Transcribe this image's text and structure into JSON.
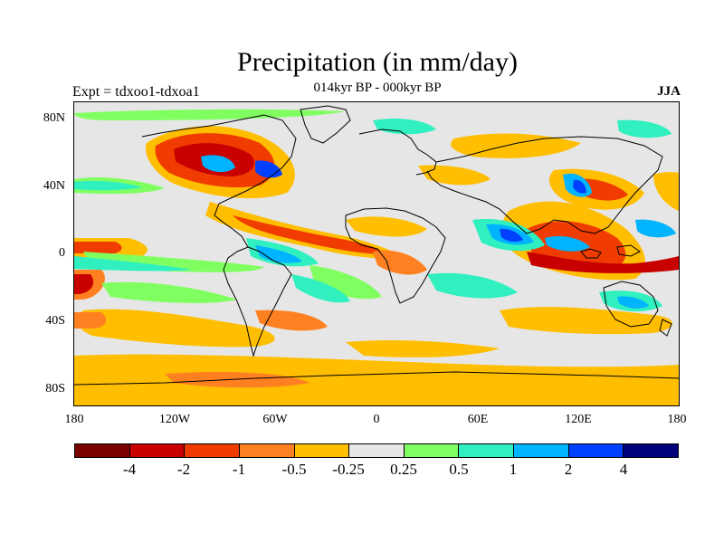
{
  "title": "Precipitation (in mm/day)",
  "subtitle": "014kyr BP - 000kyr BP",
  "left_label": "Expt = tdxoo1-tdxoa1",
  "right_label": "JJA",
  "colors": {
    "background": "#e6e6e6",
    "coast": "#000000"
  },
  "lat_ticks": [
    "80N",
    "40N",
    "0",
    "40S",
    "80S"
  ],
  "lon_ticks": [
    "180",
    "120W",
    "60W",
    "0",
    "60E",
    "120E",
    "180"
  ],
  "colorbar": {
    "colors": [
      "#7a0000",
      "#c80000",
      "#f03c00",
      "#ff8020",
      "#ffbe00",
      "#e6e6e6",
      "#80ff60",
      "#30f0c0",
      "#00b4ff",
      "#0040ff",
      "#00007c"
    ],
    "labels": [
      "-4",
      "-2",
      "-1",
      "-0.5",
      "-0.25",
      "0.25",
      "0.5",
      "1",
      "2",
      "4"
    ]
  }
}
